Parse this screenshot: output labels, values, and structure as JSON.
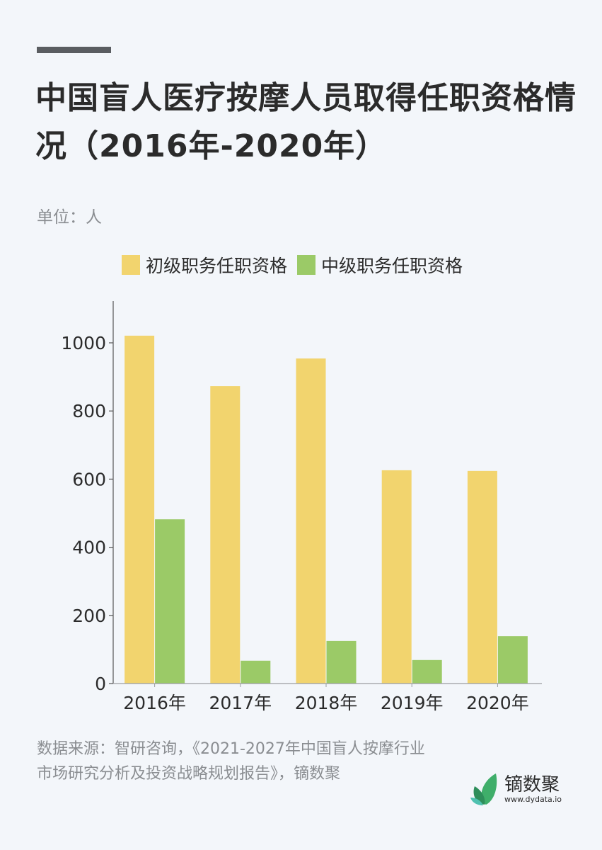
{
  "header": {
    "title": "中国盲人医疗按摩人员取得任职资格情况（2016年-2020年）",
    "unit_label": "单位：人"
  },
  "legend": [
    {
      "label": "初级职务任职资格",
      "color": "#f2d46e"
    },
    {
      "label": "中级职务任职资格",
      "color": "#9bca67"
    }
  ],
  "chart_data": {
    "type": "bar",
    "title": "中国盲人医疗按摩人员取得任职资格情况（2016年-2020年）",
    "subtitle": "单位：人",
    "categories": [
      "2016年",
      "2017年",
      "2018年",
      "2019年",
      "2020年"
    ],
    "series": [
      {
        "name": "初级职务任职资格",
        "color": "#f2d46e",
        "values": [
          1021,
          873,
          954,
          626,
          624
        ]
      },
      {
        "name": "中级职务任职资格",
        "color": "#9bca67",
        "values": [
          482,
          67,
          125,
          69,
          139
        ]
      }
    ],
    "xlabel": "",
    "ylabel": "",
    "ylim": [
      0,
      1100
    ],
    "yticks": [
      0,
      200,
      400,
      600,
      800,
      1000
    ],
    "grid": false,
    "legend_position": "top"
  },
  "footer": {
    "source": "数据来源：智研咨询，《2021-2027年中国盲人按摩行业市场研究分析及投资战略规划报告》，镝数聚",
    "logo_name": "镝数聚",
    "logo_url": "www.dydata.io"
  }
}
